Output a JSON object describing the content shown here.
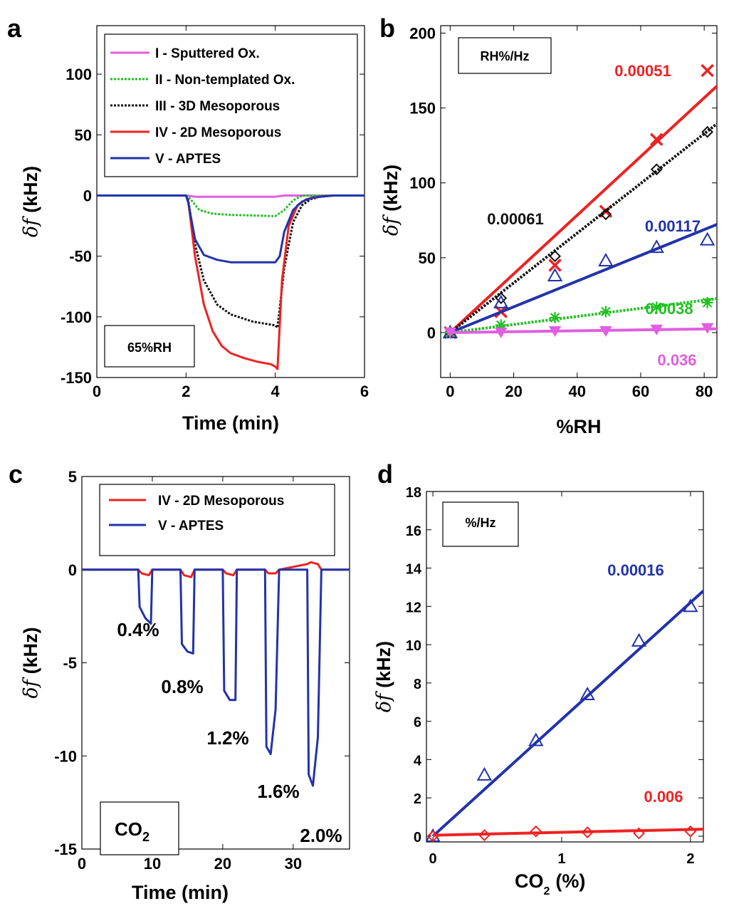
{
  "chart_data": [
    {
      "panel": "a",
      "type": "line",
      "xlabel": "Time (min)",
      "ylabel_symbol": "δf",
      "ylabel_unit": "(kHz)",
      "xlim": [
        0,
        6
      ],
      "ylim": [
        -150,
        140
      ],
      "xticks": [
        0,
        2,
        4,
        6
      ],
      "yticks": [
        -150,
        -100,
        -50,
        0,
        50,
        100
      ],
      "legend_position": "top",
      "annotation": "65%RH",
      "series": [
        {
          "name": "I - Sputtered Ox.",
          "color": "#e05ee0",
          "style": "solid",
          "x": [
            0,
            2,
            2.2,
            4.0,
            4.2,
            6
          ],
          "y": [
            0,
            0,
            -1,
            -1,
            0,
            0
          ]
        },
        {
          "name": "II - Non-templated Ox.",
          "color": "#22c022",
          "style": "dotted",
          "x": [
            0,
            2,
            2.1,
            2.3,
            2.6,
            3.0,
            4.0,
            4.2,
            4.4,
            4.6,
            6
          ],
          "y": [
            0,
            0,
            -3,
            -12,
            -15,
            -16,
            -17,
            -12,
            -4,
            0,
            0
          ]
        },
        {
          "name": "III - 3D Mesoporous",
          "color": "#111111",
          "style": "dotted",
          "x": [
            0,
            2,
            2.05,
            2.2,
            2.4,
            2.7,
            3.0,
            3.5,
            4.0,
            4.05,
            4.2,
            4.4,
            4.6,
            4.8,
            5.0,
            5.3,
            6
          ],
          "y": [
            0,
            0,
            -4,
            -40,
            -70,
            -90,
            -98,
            -104,
            -107,
            -109,
            -60,
            -22,
            -8,
            -3,
            -1,
            0,
            0
          ]
        },
        {
          "name": "IV - 2D Mesoporous",
          "color": "#ee2222",
          "style": "solid",
          "x": [
            0,
            2,
            2.05,
            2.2,
            2.4,
            2.6,
            2.8,
            3.0,
            3.3,
            3.6,
            3.9,
            4.0,
            4.05,
            4.15,
            4.3,
            4.5,
            4.7,
            5.0,
            5.3,
            6
          ],
          "y": [
            0,
            0,
            -5,
            -50,
            -90,
            -112,
            -124,
            -130,
            -134,
            -137,
            -139,
            -141,
            -143,
            -70,
            -25,
            -8,
            -3,
            -1,
            0,
            0
          ]
        },
        {
          "name": "V - APTES",
          "color": "#2233aa",
          "style": "solid",
          "x": [
            0,
            2,
            2.05,
            2.2,
            2.4,
            2.7,
            3.0,
            3.5,
            4.0,
            4.1,
            4.2,
            4.4,
            4.6,
            4.8,
            5.0,
            5.3,
            6
          ],
          "y": [
            0,
            0,
            -6,
            -36,
            -49,
            -53,
            -55,
            -55,
            -55,
            -50,
            -30,
            -12,
            -5,
            -2,
            -1,
            0,
            0
          ]
        }
      ]
    },
    {
      "panel": "b",
      "type": "scatter",
      "xlabel": "%RH",
      "ylabel_symbol": "δf",
      "ylabel_unit": "(kHz)",
      "xlim": [
        -3,
        84
      ],
      "ylim": [
        -30,
        205
      ],
      "xticks": [
        0,
        20,
        40,
        60,
        80
      ],
      "yticks": [
        0,
        50,
        100,
        150,
        200
      ],
      "annotation": "RH%/Hz",
      "series": [
        {
          "name": "IV",
          "color": "#ee2222",
          "marker": "x",
          "line_style": "solid",
          "slope_label": "0.00051",
          "x": [
            0,
            16,
            33,
            49,
            65,
            81
          ],
          "y": [
            0,
            14,
            45,
            81,
            129,
            175
          ],
          "fit": [
            1.96,
            0
          ]
        },
        {
          "name": "III",
          "color": "#111111",
          "marker": "diamond",
          "line_style": "dotted",
          "slope_label": "0.00061",
          "x": [
            0,
            16,
            33,
            49,
            65,
            81
          ],
          "y": [
            0,
            23,
            51,
            79,
            109,
            134
          ],
          "fit": [
            1.66,
            0
          ]
        },
        {
          "name": "V",
          "color": "#2233aa",
          "marker": "triangle",
          "line_style": "solid",
          "slope_label": "0.00117",
          "x": [
            0,
            16,
            33,
            49,
            65,
            81
          ],
          "y": [
            0,
            20,
            38,
            48,
            57,
            62
          ],
          "fit": [
            0.86,
            0
          ]
        },
        {
          "name": "II",
          "color": "#22c022",
          "marker": "star",
          "line_style": "dotted",
          "slope_label": "0.0038",
          "x": [
            0,
            16,
            33,
            49,
            65,
            81
          ],
          "y": [
            0,
            5,
            10,
            14,
            17,
            20
          ],
          "fit": [
            0.27,
            0
          ]
        },
        {
          "name": "I",
          "color": "#e05ee0",
          "marker": "down-triangle",
          "line_style": "solid",
          "slope_label": "0.036",
          "x": [
            0,
            16,
            33,
            49,
            65,
            81
          ],
          "y": [
            0,
            0,
            1,
            1,
            2,
            3
          ],
          "fit": [
            0.03,
            0
          ]
        }
      ]
    },
    {
      "panel": "c",
      "type": "line",
      "xlabel": "Time (min)",
      "ylabel_symbol": "δf",
      "ylabel_unit": "(kHz)",
      "xlim": [
        0,
        38
      ],
      "ylim": [
        -15,
        5
      ],
      "xticks": [
        0,
        10,
        20,
        30
      ],
      "yticks": [
        -15,
        -10,
        -5,
        0,
        5
      ],
      "legend_position": "top",
      "annotation_main": "CO",
      "annotation_sub": "2",
      "concentration_labels": [
        "0.4%",
        "0.8%",
        "1.2%",
        "1.6%",
        "2.0%"
      ],
      "series": [
        {
          "name": "IV - 2D Mesoporous",
          "color": "#ee2222",
          "x": [
            0,
            8,
            8.5,
            9.5,
            10,
            14,
            14.5,
            15.5,
            16,
            20,
            20.5,
            21.5,
            22,
            26,
            26.5,
            27.5,
            28,
            32,
            32.5,
            33.5,
            34,
            38
          ],
          "y": [
            0,
            0,
            -0.2,
            -0.3,
            0,
            0,
            -0.3,
            -0.4,
            0,
            0,
            -0.2,
            -0.3,
            0,
            0,
            -0.2,
            -0.2,
            0,
            0.3,
            0.4,
            0.3,
            0,
            0
          ]
        },
        {
          "name": "V - APTES",
          "color": "#2233aa",
          "x": [
            0,
            8,
            8.2,
            9,
            9.8,
            10,
            14,
            14.2,
            15,
            15.8,
            16,
            20,
            20.2,
            21,
            21.8,
            22,
            26,
            26.2,
            26.8,
            27.5,
            28,
            32,
            32.2,
            32.8,
            33.5,
            34,
            38
          ],
          "y": [
            0,
            0,
            -2.0,
            -2.6,
            -2.9,
            0,
            0,
            -4.0,
            -4.4,
            -4.5,
            0,
            0,
            -6.5,
            -7.0,
            -7.0,
            0,
            0,
            -9.5,
            -9.9,
            -7.5,
            0,
            0,
            -11.0,
            -11.6,
            -9.0,
            0,
            0
          ]
        }
      ]
    },
    {
      "panel": "d",
      "type": "scatter",
      "xlabel_main": "CO",
      "xlabel_sub": "2",
      "xlabel_tail": "(%)",
      "ylabel_symbol": "δf",
      "ylabel_unit": "(kHz)",
      "xlim": [
        -0.05,
        2.1
      ],
      "ylim": [
        -0.3,
        18
      ],
      "xticks": [
        0,
        1,
        2
      ],
      "yticks": [
        0,
        2,
        4,
        6,
        8,
        10,
        12,
        14,
        16,
        18
      ],
      "annotation": "%/Hz",
      "series": [
        {
          "name": "V",
          "color": "#2233aa",
          "marker": "triangle",
          "slope_label": "0.00016",
          "x": [
            0,
            0.4,
            0.8,
            1.2,
            1.6,
            2.0
          ],
          "y": [
            0,
            3.2,
            5.0,
            7.4,
            10.2,
            12.0
          ],
          "fit": [
            6.1,
            0
          ]
        },
        {
          "name": "IV",
          "color": "#ee2222",
          "marker": "diamond",
          "slope_label": "0.006",
          "x": [
            0,
            0.4,
            0.8,
            1.2,
            1.6,
            2.0
          ],
          "y": [
            0,
            0.05,
            0.25,
            0.2,
            0.15,
            0.25
          ],
          "fit": [
            0.15,
            0.05
          ]
        }
      ]
    }
  ],
  "panel_letters": {
    "a": "a",
    "b": "b",
    "c": "c",
    "d": "d"
  }
}
